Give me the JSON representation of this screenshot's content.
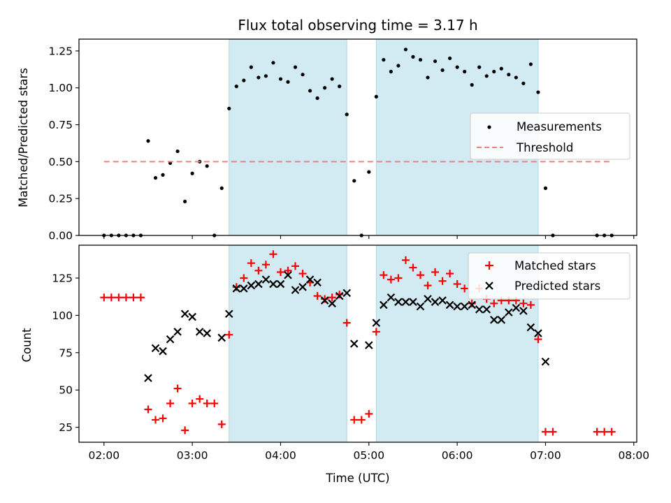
{
  "chart_data": [
    {
      "type": "scatter",
      "title": "Flux total observing time = 3.17 h",
      "xlabel": "",
      "ylabel": "Matched/Predicted stars",
      "xlim": [
        "01:43",
        "08:02"
      ],
      "ylim": [
        0,
        1.33
      ],
      "yticks": [
        0.0,
        0.25,
        0.5,
        0.75,
        1.0,
        1.25
      ],
      "ytick_labels": [
        "0.00",
        "0.25",
        "0.50",
        "0.75",
        "1.00",
        "1.25"
      ],
      "xticks": [
        "02:00",
        "03:00",
        "04:00",
        "05:00",
        "06:00",
        "07:00",
        "08:00"
      ],
      "shaded_intervals": [
        [
          "03:25",
          "04:45"
        ],
        [
          "05:05",
          "06:55"
        ]
      ],
      "shade_color": "#add8e6",
      "legend": {
        "placement": "center-right",
        "entries": [
          "Measurements",
          "Threshold"
        ]
      },
      "series": [
        {
          "name": "Measurements",
          "marker": "dot",
          "color": "#000000",
          "points": [
            [
              "02:00",
              0.0
            ],
            [
              "02:05",
              0.0
            ],
            [
              "02:10",
              0.0
            ],
            [
              "02:15",
              0.0
            ],
            [
              "02:20",
              0.0
            ],
            [
              "02:25",
              0.0
            ],
            [
              "02:30",
              0.64
            ],
            [
              "02:35",
              0.39
            ],
            [
              "02:40",
              0.41
            ],
            [
              "02:45",
              0.49
            ],
            [
              "02:50",
              0.57
            ],
            [
              "02:55",
              0.23
            ],
            [
              "03:00",
              0.42
            ],
            [
              "03:05",
              0.5
            ],
            [
              "03:10",
              0.47
            ],
            [
              "03:15",
              0.0
            ],
            [
              "03:20",
              0.32
            ],
            [
              "03:25",
              0.86
            ],
            [
              "03:30",
              1.01
            ],
            [
              "03:35",
              1.05
            ],
            [
              "03:40",
              1.14
            ],
            [
              "03:45",
              1.07
            ],
            [
              "03:50",
              1.08
            ],
            [
              "03:55",
              1.17
            ],
            [
              "04:00",
              1.06
            ],
            [
              "04:05",
              1.04
            ],
            [
              "04:10",
              1.14
            ],
            [
              "04:15",
              1.09
            ],
            [
              "04:20",
              0.98
            ],
            [
              "04:25",
              0.93
            ],
            [
              "04:30",
              1.0
            ],
            [
              "04:35",
              1.06
            ],
            [
              "04:40",
              1.01
            ],
            [
              "04:45",
              0.82
            ],
            [
              "04:50",
              0.37
            ],
            [
              "04:55",
              0.0
            ],
            [
              "05:00",
              0.43
            ],
            [
              "05:05",
              0.94
            ],
            [
              "05:10",
              1.19
            ],
            [
              "05:15",
              1.11
            ],
            [
              "05:20",
              1.15
            ],
            [
              "05:25",
              1.26
            ],
            [
              "05:30",
              1.21
            ],
            [
              "05:35",
              1.19
            ],
            [
              "05:40",
              1.07
            ],
            [
              "05:45",
              1.18
            ],
            [
              "05:50",
              1.12
            ],
            [
              "05:55",
              1.2
            ],
            [
              "06:00",
              1.14
            ],
            [
              "06:05",
              1.11
            ],
            [
              "06:10",
              1.02
            ],
            [
              "06:15",
              1.14
            ],
            [
              "06:20",
              1.08
            ],
            [
              "06:25",
              1.11
            ],
            [
              "06:30",
              1.13
            ],
            [
              "06:35",
              1.09
            ],
            [
              "06:40",
              1.07
            ],
            [
              "06:45",
              1.03
            ],
            [
              "06:50",
              1.16
            ],
            [
              "06:55",
              0.97
            ],
            [
              "07:00",
              0.32
            ],
            [
              "07:05",
              0.0
            ],
            [
              "07:35",
              0.0
            ],
            [
              "07:40",
              0.0
            ],
            [
              "07:45",
              0.0
            ]
          ]
        },
        {
          "name": "Threshold",
          "marker": "dashed-line",
          "color": "#f08080",
          "points": [
            [
              "02:00",
              0.5
            ],
            [
              "07:45",
              0.5
            ]
          ]
        }
      ]
    },
    {
      "type": "scatter",
      "title": "",
      "xlabel": "Time (UTC)",
      "ylabel": "Count",
      "xlim": [
        "01:43",
        "08:02"
      ],
      "ylim": [
        15,
        147
      ],
      "yticks": [
        25,
        50,
        75,
        100,
        125
      ],
      "ytick_labels": [
        "25",
        "50",
        "75",
        "100",
        "125"
      ],
      "xticks": [
        "02:00",
        "03:00",
        "04:00",
        "05:00",
        "06:00",
        "07:00",
        "08:00"
      ],
      "shaded_intervals": [
        [
          "03:25",
          "04:45"
        ],
        [
          "05:05",
          "06:55"
        ]
      ],
      "shade_color": "#add8e6",
      "legend": {
        "placement": "top-right",
        "entries": [
          "Matched stars",
          "Predicted stars"
        ]
      },
      "series": [
        {
          "name": "Matched stars",
          "marker": "plus",
          "color": "#ff0000",
          "points": [
            [
              "02:00",
              112
            ],
            [
              "02:05",
              112
            ],
            [
              "02:10",
              112
            ],
            [
              "02:15",
              112
            ],
            [
              "02:20",
              112
            ],
            [
              "02:25",
              112
            ],
            [
              "02:30",
              37
            ],
            [
              "02:35",
              30
            ],
            [
              "02:40",
              31
            ],
            [
              "02:45",
              41
            ],
            [
              "02:50",
              51
            ],
            [
              "02:55",
              23
            ],
            [
              "03:00",
              41
            ],
            [
              "03:05",
              44
            ],
            [
              "03:10",
              41
            ],
            [
              "03:15",
              41
            ],
            [
              "03:20",
              27
            ],
            [
              "03:25",
              87
            ],
            [
              "03:30",
              119
            ],
            [
              "03:35",
              125
            ],
            [
              "03:40",
              135
            ],
            [
              "03:45",
              130
            ],
            [
              "03:50",
              134
            ],
            [
              "03:55",
              141
            ],
            [
              "04:00",
              129
            ],
            [
              "04:05",
              130
            ],
            [
              "04:10",
              133
            ],
            [
              "04:15",
              128
            ],
            [
              "04:20",
              122
            ],
            [
              "04:25",
              113
            ],
            [
              "04:30",
              111
            ],
            [
              "04:35",
              112
            ],
            [
              "04:40",
              114
            ],
            [
              "04:45",
              95
            ],
            [
              "04:50",
              30
            ],
            [
              "04:55",
              30
            ],
            [
              "05:00",
              34
            ],
            [
              "05:05",
              89
            ],
            [
              "05:10",
              127
            ],
            [
              "05:15",
              124
            ],
            [
              "05:20",
              125
            ],
            [
              "05:25",
              137
            ],
            [
              "05:30",
              132
            ],
            [
              "05:35",
              127
            ],
            [
              "05:40",
              120
            ],
            [
              "05:45",
              129
            ],
            [
              "05:50",
              123
            ],
            [
              "05:55",
              128
            ],
            [
              "06:00",
              121
            ],
            [
              "06:05",
              118
            ],
            [
              "06:10",
              108
            ],
            [
              "06:15",
              118
            ],
            [
              "06:20",
              111
            ],
            [
              "06:25",
              108
            ],
            [
              "06:30",
              110
            ],
            [
              "06:35",
              110
            ],
            [
              "06:40",
              110
            ],
            [
              "06:45",
              108
            ],
            [
              "06:50",
              107
            ],
            [
              "06:55",
              84
            ],
            [
              "07:00",
              22
            ],
            [
              "07:05",
              22
            ],
            [
              "07:35",
              22
            ],
            [
              "07:40",
              22
            ],
            [
              "07:45",
              22
            ]
          ]
        },
        {
          "name": "Predicted stars",
          "marker": "x",
          "color": "#000000",
          "points": [
            [
              "02:30",
              58
            ],
            [
              "02:35",
              78
            ],
            [
              "02:40",
              76
            ],
            [
              "02:45",
              84
            ],
            [
              "02:50",
              89
            ],
            [
              "02:55",
              101
            ],
            [
              "03:00",
              99
            ],
            [
              "03:05",
              89
            ],
            [
              "03:10",
              88
            ],
            [
              "03:20",
              85
            ],
            [
              "03:25",
              101
            ],
            [
              "03:30",
              118
            ],
            [
              "03:35",
              118
            ],
            [
              "03:40",
              120
            ],
            [
              "03:45",
              121
            ],
            [
              "03:50",
              124
            ],
            [
              "03:55",
              121
            ],
            [
              "04:00",
              121
            ],
            [
              "04:05",
              127
            ],
            [
              "04:10",
              117
            ],
            [
              "04:15",
              119
            ],
            [
              "04:20",
              124
            ],
            [
              "04:25",
              122
            ],
            [
              "04:30",
              110
            ],
            [
              "04:35",
              108
            ],
            [
              "04:40",
              113
            ],
            [
              "04:45",
              115
            ],
            [
              "04:50",
              81
            ],
            [
              "05:00",
              80
            ],
            [
              "05:05",
              95
            ],
            [
              "05:10",
              107
            ],
            [
              "05:15",
              112
            ],
            [
              "05:20",
              109
            ],
            [
              "05:25",
              109
            ],
            [
              "05:30",
              109
            ],
            [
              "05:35",
              106
            ],
            [
              "05:40",
              111
            ],
            [
              "05:45",
              109
            ],
            [
              "05:50",
              110
            ],
            [
              "05:55",
              107
            ],
            [
              "06:00",
              106
            ],
            [
              "06:05",
              106
            ],
            [
              "06:10",
              107
            ],
            [
              "06:15",
              104
            ],
            [
              "06:20",
              104
            ],
            [
              "06:25",
              97
            ],
            [
              "06:30",
              97
            ],
            [
              "06:35",
              102
            ],
            [
              "06:40",
              105
            ],
            [
              "06:45",
              103
            ],
            [
              "06:50",
              92
            ],
            [
              "06:55",
              88
            ],
            [
              "07:00",
              69
            ]
          ]
        }
      ]
    }
  ]
}
